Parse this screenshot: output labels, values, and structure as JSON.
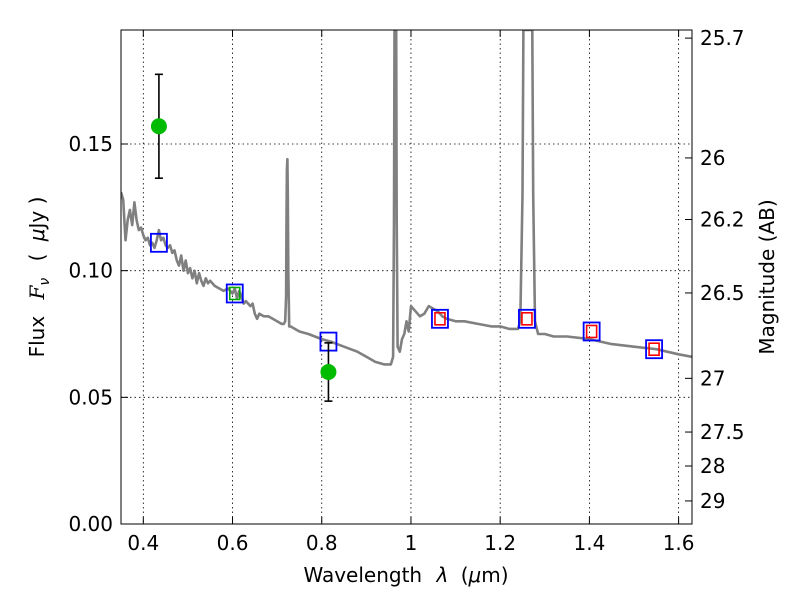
{
  "chart_data": {
    "type": "scatter",
    "xlabel": "Wavelength",
    "xlabel_symbol": "λ",
    "xlabel_unit_open": "(",
    "xlabel_unit_mu": "μ",
    "xlabel_unit_rest": "m)",
    "ylabel": "Flux",
    "ylabel_symbol": "F",
    "ylabel_subscript": "ν",
    "ylabel_unit_open": "(",
    "ylabel_unit_mu": "μ",
    "ylabel_unit_rest": "Jy )",
    "y2label": "Magnitude (AB)",
    "xlim": [
      0.35,
      1.63
    ],
    "ylim": [
      0.0,
      0.195
    ],
    "grid": true,
    "x_ticks": [
      {
        "value": 0.4,
        "label": "0.4"
      },
      {
        "value": 0.6,
        "label": "0.6"
      },
      {
        "value": 0.8,
        "label": "0.8"
      },
      {
        "value": 1.0,
        "label": "1"
      },
      {
        "value": 1.2,
        "label": "1.2"
      },
      {
        "value": 1.4,
        "label": "1.4"
      },
      {
        "value": 1.6,
        "label": "1.6"
      }
    ],
    "y_ticks": [
      {
        "value": 0.0,
        "label": "0.00"
      },
      {
        "value": 0.05,
        "label": "0.05"
      },
      {
        "value": 0.1,
        "label": "0.10"
      },
      {
        "value": 0.15,
        "label": "0.15"
      }
    ],
    "y2_ticks": [
      {
        "flux": 0.1918,
        "label": "25.7"
      },
      {
        "flux": 0.1445,
        "label": "26"
      },
      {
        "flux": 0.1202,
        "label": "26.2"
      },
      {
        "flux": 0.0912,
        "label": "26.5"
      },
      {
        "flux": 0.0575,
        "label": "27"
      },
      {
        "flux": 0.0363,
        "label": "27.5"
      },
      {
        "flux": 0.0229,
        "label": "28"
      },
      {
        "flux": 0.0091,
        "label": "29"
      }
    ],
    "series": [
      {
        "kind": "sed_model",
        "color": "#808080",
        "points": [
          [
            0.35,
            0.131
          ],
          [
            0.355,
            0.128
          ],
          [
            0.36,
            0.112
          ],
          [
            0.365,
            0.12
          ],
          [
            0.37,
            0.124
          ],
          [
            0.375,
            0.118
          ],
          [
            0.38,
            0.127
          ],
          [
            0.385,
            0.12
          ],
          [
            0.39,
            0.116
          ],
          [
            0.395,
            0.117
          ],
          [
            0.4,
            0.114
          ],
          [
            0.405,
            0.112
          ],
          [
            0.41,
            0.113
          ],
          [
            0.415,
            0.11
          ],
          [
            0.42,
            0.111
          ],
          [
            0.425,
            0.109
          ],
          [
            0.43,
            0.112
          ],
          [
            0.435,
            0.116
          ],
          [
            0.44,
            0.112
          ],
          [
            0.445,
            0.113
          ],
          [
            0.45,
            0.11
          ],
          [
            0.455,
            0.109
          ],
          [
            0.46,
            0.11
          ],
          [
            0.465,
            0.107
          ],
          [
            0.47,
            0.108
          ],
          [
            0.475,
            0.104
          ],
          [
            0.48,
            0.102
          ],
          [
            0.485,
            0.106
          ],
          [
            0.49,
            0.1
          ],
          [
            0.495,
            0.104
          ],
          [
            0.5,
            0.099
          ],
          [
            0.505,
            0.101
          ],
          [
            0.51,
            0.097
          ],
          [
            0.515,
            0.1
          ],
          [
            0.52,
            0.095
          ],
          [
            0.525,
            0.099
          ],
          [
            0.53,
            0.096
          ],
          [
            0.535,
            0.094
          ],
          [
            0.54,
            0.097
          ],
          [
            0.545,
            0.095
          ],
          [
            0.55,
            0.096
          ],
          [
            0.56,
            0.094
          ],
          [
            0.57,
            0.093
          ],
          [
            0.58,
            0.092
          ],
          [
            0.59,
            0.093
          ],
          [
            0.6,
            0.091
          ],
          [
            0.605,
            0.093
          ],
          [
            0.61,
            0.089
          ],
          [
            0.615,
            0.092
          ],
          [
            0.62,
            0.09
          ],
          [
            0.625,
            0.087
          ],
          [
            0.63,
            0.088
          ],
          [
            0.64,
            0.086
          ],
          [
            0.645,
            0.087
          ],
          [
            0.65,
            0.083
          ],
          [
            0.655,
            0.081
          ],
          [
            0.66,
            0.083
          ],
          [
            0.67,
            0.082
          ],
          [
            0.68,
            0.082
          ],
          [
            0.69,
            0.081
          ],
          [
            0.7,
            0.08
          ],
          [
            0.71,
            0.079
          ],
          [
            0.715,
            0.079
          ],
          [
            0.718,
            0.08
          ],
          [
            0.72,
            0.09
          ],
          [
            0.721,
            0.12
          ],
          [
            0.722,
            0.14
          ],
          [
            0.723,
            0.144
          ],
          [
            0.724,
            0.13
          ],
          [
            0.725,
            0.1
          ],
          [
            0.727,
            0.078
          ],
          [
            0.73,
            0.078
          ],
          [
            0.75,
            0.076
          ],
          [
            0.77,
            0.075
          ],
          [
            0.8,
            0.073
          ],
          [
            0.82,
            0.072
          ],
          [
            0.85,
            0.07
          ],
          [
            0.88,
            0.068
          ],
          [
            0.9,
            0.066
          ],
          [
            0.92,
            0.064
          ],
          [
            0.94,
            0.063
          ],
          [
            0.955,
            0.063
          ],
          [
            0.96,
            0.066
          ],
          [
            0.962,
            0.12
          ],
          [
            0.963,
            0.195
          ],
          [
            0.967,
            0.195
          ],
          [
            0.968,
            0.12
          ],
          [
            0.97,
            0.07
          ],
          [
            0.975,
            0.068
          ],
          [
            0.98,
            0.073
          ],
          [
            0.985,
            0.075
          ],
          [
            0.99,
            0.08
          ],
          [
            0.995,
            0.076
          ],
          [
            1.0,
            0.086
          ],
          [
            1.01,
            0.084
          ],
          [
            1.02,
            0.082
          ],
          [
            1.03,
            0.083
          ],
          [
            1.04,
            0.086
          ],
          [
            1.05,
            0.085
          ],
          [
            1.06,
            0.084
          ],
          [
            1.065,
            0.083
          ],
          [
            1.07,
            0.082
          ],
          [
            1.08,
            0.081
          ],
          [
            1.1,
            0.08
          ],
          [
            1.12,
            0.08
          ],
          [
            1.15,
            0.079
          ],
          [
            1.18,
            0.078
          ],
          [
            1.2,
            0.078
          ],
          [
            1.22,
            0.077
          ],
          [
            1.24,
            0.077
          ],
          [
            1.245,
            0.08
          ],
          [
            1.25,
            0.13
          ],
          [
            1.252,
            0.195
          ],
          [
            1.272,
            0.195
          ],
          [
            1.274,
            0.13
          ],
          [
            1.278,
            0.08
          ],
          [
            1.285,
            0.075
          ],
          [
            1.3,
            0.075
          ],
          [
            1.32,
            0.074
          ],
          [
            1.35,
            0.074
          ],
          [
            1.4,
            0.073
          ],
          [
            1.45,
            0.071
          ],
          [
            1.5,
            0.07
          ],
          [
            1.55,
            0.069
          ],
          [
            1.6,
            0.067
          ],
          [
            1.63,
            0.066
          ]
        ]
      },
      {
        "kind": "model_photometry",
        "marker": "square",
        "edgecolor": "#0000ff",
        "points": [
          [
            0.435,
            0.111
          ],
          [
            0.605,
            0.091
          ],
          [
            0.815,
            0.072
          ],
          [
            1.065,
            0.081
          ],
          [
            1.26,
            0.081
          ],
          [
            1.405,
            0.076
          ],
          [
            1.545,
            0.069
          ]
        ]
      },
      {
        "kind": "observed_detections",
        "marker": "circle",
        "color": "#00bb00",
        "points": [
          {
            "x": 0.435,
            "y": 0.157,
            "yerr": 0.0205
          },
          {
            "x": 0.815,
            "y": 0.06,
            "yerr": 0.0115
          }
        ]
      },
      {
        "kind": "upper_limits",
        "marker": "square",
        "color": "#ff0000",
        "points": [
          [
            1.065,
            0.081
          ],
          [
            1.26,
            0.081
          ],
          [
            1.405,
            0.076
          ],
          [
            1.545,
            0.069
          ]
        ]
      },
      {
        "kind": "small_green_marker",
        "marker": "square",
        "color": "#00aa00",
        "points": [
          [
            0.605,
            0.091
          ]
        ]
      }
    ]
  }
}
